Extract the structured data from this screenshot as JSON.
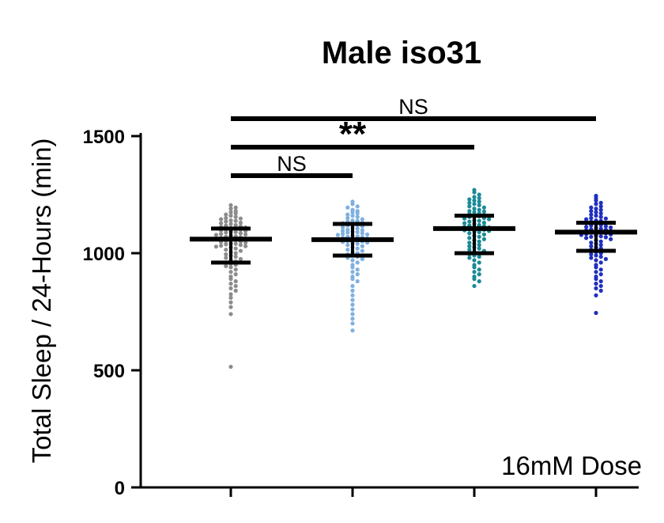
{
  "chart_data": {
    "type": "scatter",
    "title": "Male iso31",
    "ylabel": "Total Sleep / 24-Hours (min)",
    "xlabel": "",
    "ylim": [
      0,
      1500
    ],
    "yticks": [
      0,
      500,
      1000,
      1500
    ],
    "annotation": "16mM Dose",
    "grid": false,
    "categories": [
      "",
      "",
      "",
      ""
    ],
    "groups": [
      {
        "color": "#8c8c8c",
        "median": 1060,
        "q1": 960,
        "q3": 1105,
        "min": 515,
        "max": 1205,
        "values": [
          1205,
          1195,
          1190,
          1180,
          1175,
          1170,
          1165,
          1160,
          1155,
          1150,
          1148,
          1145,
          1140,
          1138,
          1135,
          1130,
          1128,
          1125,
          1120,
          1118,
          1115,
          1112,
          1110,
          1108,
          1105,
          1102,
          1100,
          1098,
          1095,
          1092,
          1090,
          1088,
          1085,
          1082,
          1080,
          1078,
          1075,
          1072,
          1070,
          1068,
          1065,
          1062,
          1060,
          1058,
          1055,
          1052,
          1050,
          1048,
          1045,
          1042,
          1040,
          1038,
          1035,
          1032,
          1030,
          1028,
          1025,
          1020,
          1015,
          1010,
          1005,
          1000,
          995,
          990,
          985,
          980,
          975,
          970,
          965,
          960,
          955,
          950,
          945,
          940,
          930,
          920,
          910,
          900,
          890,
          880,
          870,
          860,
          850,
          840,
          825,
          810,
          790,
          770,
          740,
          515
        ]
      },
      {
        "color": "#7fb0e0",
        "median": 1058,
        "q1": 990,
        "q3": 1125,
        "min": 670,
        "max": 1220,
        "values": [
          1220,
          1210,
          1200,
          1195,
          1185,
          1180,
          1175,
          1170,
          1165,
          1160,
          1155,
          1150,
          1145,
          1140,
          1138,
          1135,
          1130,
          1128,
          1125,
          1120,
          1118,
          1115,
          1110,
          1108,
          1105,
          1100,
          1098,
          1095,
          1092,
          1090,
          1088,
          1085,
          1082,
          1080,
          1078,
          1075,
          1072,
          1070,
          1068,
          1065,
          1062,
          1060,
          1058,
          1055,
          1052,
          1050,
          1048,
          1045,
          1042,
          1040,
          1035,
          1030,
          1025,
          1020,
          1015,
          1010,
          1005,
          1000,
          995,
          990,
          985,
          980,
          975,
          970,
          960,
          950,
          940,
          930,
          920,
          910,
          900,
          890,
          880,
          860,
          840,
          820,
          800,
          780,
          760,
          740,
          720,
          700,
          670
        ]
      },
      {
        "color": "#1a8a96",
        "median": 1105,
        "q1": 1000,
        "q3": 1160,
        "min": 860,
        "max": 1270,
        "values": [
          1270,
          1260,
          1250,
          1240,
          1235,
          1230,
          1225,
          1220,
          1215,
          1210,
          1205,
          1200,
          1195,
          1190,
          1185,
          1180,
          1178,
          1175,
          1170,
          1168,
          1165,
          1160,
          1158,
          1155,
          1150,
          1148,
          1145,
          1140,
          1138,
          1135,
          1130,
          1128,
          1125,
          1120,
          1118,
          1115,
          1112,
          1110,
          1108,
          1105,
          1102,
          1100,
          1098,
          1095,
          1092,
          1090,
          1085,
          1080,
          1075,
          1070,
          1065,
          1060,
          1055,
          1050,
          1045,
          1040,
          1035,
          1030,
          1025,
          1020,
          1015,
          1010,
          1005,
          1000,
          995,
          990,
          985,
          980,
          970,
          960,
          950,
          940,
          930,
          920,
          910,
          900,
          890,
          880,
          860
        ]
      },
      {
        "color": "#1f2fbf",
        "median": 1090,
        "q1": 1010,
        "q3": 1130,
        "min": 745,
        "max": 1245,
        "values": [
          1245,
          1235,
          1225,
          1215,
          1210,
          1200,
          1195,
          1190,
          1185,
          1180,
          1175,
          1170,
          1165,
          1160,
          1155,
          1150,
          1148,
          1145,
          1140,
          1138,
          1135,
          1130,
          1128,
          1125,
          1120,
          1118,
          1115,
          1112,
          1110,
          1108,
          1105,
          1102,
          1100,
          1098,
          1095,
          1092,
          1090,
          1088,
          1085,
          1082,
          1080,
          1078,
          1075,
          1072,
          1070,
          1068,
          1065,
          1060,
          1055,
          1050,
          1045,
          1040,
          1035,
          1030,
          1025,
          1020,
          1015,
          1010,
          1005,
          1000,
          995,
          990,
          985,
          980,
          975,
          970,
          960,
          950,
          940,
          930,
          920,
          910,
          900,
          890,
          880,
          870,
          860,
          850,
          840,
          820,
          745
        ]
      }
    ],
    "significance": [
      {
        "from": 0,
        "to": 3,
        "label": "NS"
      },
      {
        "from": 0,
        "to": 2,
        "label": "**"
      },
      {
        "from": 0,
        "to": 1,
        "label": "NS"
      }
    ]
  }
}
